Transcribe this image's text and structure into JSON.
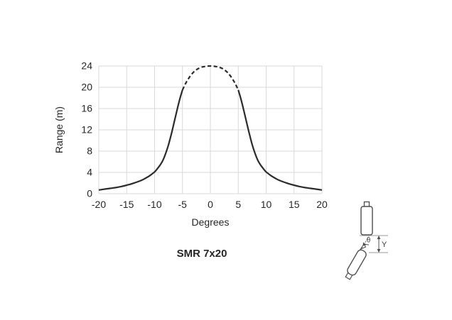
{
  "page": {
    "background": "#ffffff"
  },
  "chart_data": {
    "type": "line",
    "title": "SMR 7x20",
    "xlabel": "Degrees",
    "ylabel": "Range (m)",
    "xlim": [
      -20,
      20
    ],
    "ylim": [
      0,
      24
    ],
    "xticks": [
      -20,
      -15,
      -10,
      -5,
      0,
      5,
      10,
      15,
      20
    ],
    "xtick_labels": [
      "-20",
      "-15",
      "-10",
      "-5",
      "0",
      "5",
      "10",
      "15",
      "20"
    ],
    "yticks": [
      0,
      4,
      8,
      12,
      16,
      20,
      24
    ],
    "ytick_labels": [
      "0",
      "4",
      "8",
      "12",
      "16",
      "20",
      "24"
    ],
    "grid": true,
    "legend": "none",
    "line_color": "#2b2b2b",
    "grid_color": "#d9d9d9",
    "series": [
      {
        "name": "range-curve-left-solid",
        "style": "solid",
        "x": [
          -20,
          -19,
          -18,
          -17,
          -16,
          -15,
          -14,
          -13,
          -12,
          -11,
          -10,
          -9.5,
          -9,
          -8.5,
          -8,
          -7.5,
          -7,
          -6.5,
          -6,
          -5.5,
          -5
        ],
        "y": [
          0.7,
          0.85,
          1.0,
          1.15,
          1.35,
          1.6,
          1.9,
          2.25,
          2.7,
          3.3,
          4.1,
          4.7,
          5.4,
          6.3,
          7.6,
          9.2,
          11.2,
          13.4,
          15.6,
          17.7,
          19.5
        ]
      },
      {
        "name": "range-curve-peak-dashed",
        "style": "dashed",
        "x": [
          -5,
          -4.5,
          -4,
          -3.5,
          -3,
          -2.5,
          -2,
          -1.5,
          -1,
          -0.5,
          0,
          0.5,
          1,
          1.5,
          2,
          2.5,
          3,
          3.5,
          4,
          4.5,
          5
        ],
        "y": [
          19.5,
          20.6,
          21.5,
          22.25,
          22.85,
          23.3,
          23.6,
          23.8,
          23.9,
          23.97,
          24,
          23.97,
          23.9,
          23.8,
          23.6,
          23.3,
          22.85,
          22.25,
          21.5,
          20.6,
          19.5
        ]
      },
      {
        "name": "range-curve-right-solid",
        "style": "solid",
        "x": [
          5,
          5.5,
          6,
          6.5,
          7,
          7.5,
          8,
          8.5,
          9,
          9.5,
          10,
          11,
          12,
          13,
          14,
          15,
          16,
          17,
          18,
          19,
          20
        ],
        "y": [
          19.5,
          17.7,
          15.6,
          13.4,
          11.2,
          9.2,
          7.6,
          6.3,
          5.4,
          4.7,
          4.1,
          3.3,
          2.7,
          2.25,
          1.9,
          1.6,
          1.35,
          1.15,
          1.0,
          0.85,
          0.7
        ]
      }
    ]
  },
  "diagram": {
    "theta_label": "θ",
    "y_label": "Y"
  }
}
